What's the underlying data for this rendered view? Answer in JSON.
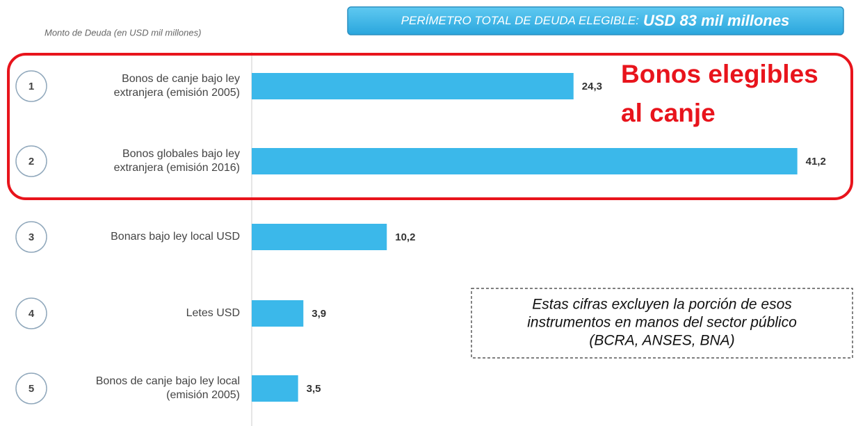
{
  "chart_data": {
    "type": "bar",
    "orientation": "horizontal",
    "banner": {
      "lead": "PERÍMETRO TOTAL DE DEUDA ELEGIBLE:",
      "total": "USD 83 mil millones"
    },
    "subtitle": "Monto de Deuda (en USD mil millones)",
    "item_numbers": [
      1,
      2,
      3,
      4,
      5
    ],
    "categories": [
      [
        "Bonos de canje bajo ley",
        "extranjera (emisión 2005)"
      ],
      [
        "Bonos globales bajo ley",
        "extranjera (emisión 2016)"
      ],
      [
        "Bonars bajo ley local USD"
      ],
      [
        "Letes USD"
      ],
      [
        "Bonos de canje bajo ley local",
        "(emisión 2005)"
      ]
    ],
    "values": [
      24.3,
      41.2,
      10.2,
      3.9,
      3.5
    ],
    "value_labels": [
      "24,3",
      "41,2",
      "10,2",
      "3,9",
      "3,5"
    ],
    "color": "#3bb8ea",
    "xlim": [
      0,
      45
    ],
    "highlight": {
      "label": [
        "Bonos elegibles",
        "al canje"
      ],
      "color": "#e8141c"
    },
    "note": [
      "Estas cifras excluyen la porción de esos",
      "instrumentos en manos del sector público",
      "(BCRA, ANSES, BNA)"
    ]
  }
}
